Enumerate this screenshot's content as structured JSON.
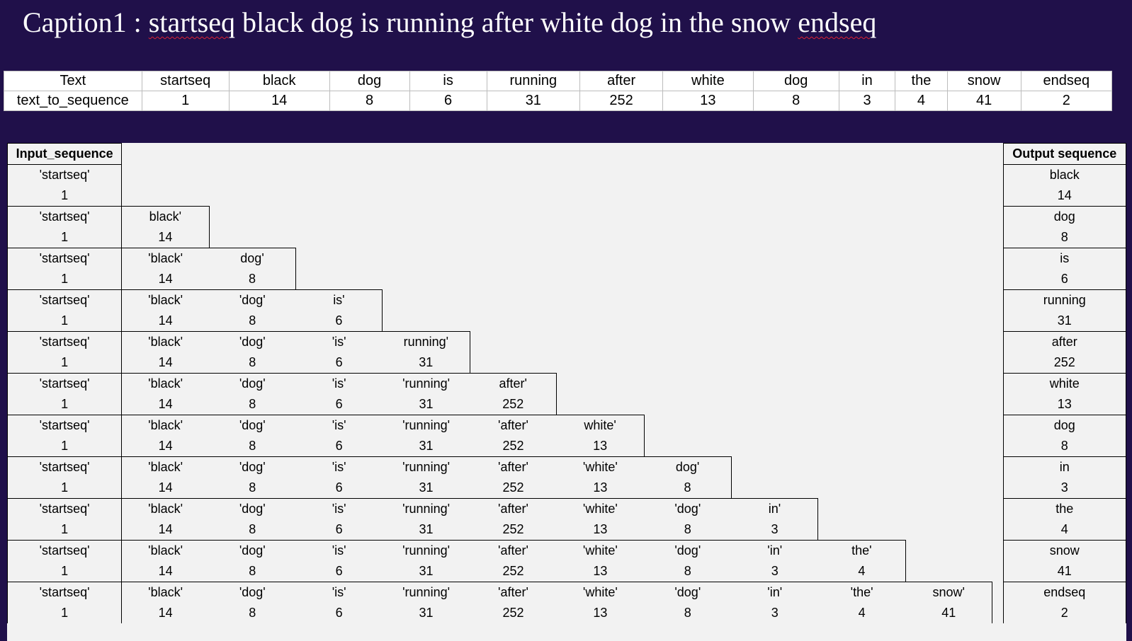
{
  "caption": {
    "prefix": "Caption1 : ",
    "start_token": "startseq",
    "middle": " black dog is running after white dog in the snow ",
    "end_token": "endseq"
  },
  "token_table": {
    "row_labels": [
      "Text",
      "text_to_sequence"
    ],
    "tokens": [
      "startseq",
      "black",
      "dog",
      "is",
      "running",
      "after",
      "white",
      "dog",
      "in",
      "the",
      "snow",
      "endseq"
    ],
    "ids": [
      "1",
      "14",
      "8",
      "6",
      "31",
      "252",
      "13",
      "8",
      "3",
      "4",
      "41",
      "2"
    ]
  },
  "sequences": {
    "input_header": "Input_sequence",
    "output_header": "Output sequence",
    "rows": [
      {
        "words": [
          "'startseq'"
        ],
        "ids": [
          "1"
        ],
        "out_word": "black",
        "out_id": "14"
      },
      {
        "words": [
          "'startseq'",
          "black'"
        ],
        "ids": [
          "1",
          "14"
        ],
        "out_word": "dog",
        "out_id": "8"
      },
      {
        "words": [
          "'startseq'",
          "'black'",
          "dog'"
        ],
        "ids": [
          "1",
          "14",
          "8"
        ],
        "out_word": "is",
        "out_id": "6"
      },
      {
        "words": [
          "'startseq'",
          "'black'",
          "'dog'",
          "is'"
        ],
        "ids": [
          "1",
          "14",
          "8",
          "6"
        ],
        "out_word": "running",
        "out_id": "31"
      },
      {
        "words": [
          "'startseq'",
          "'black'",
          "'dog'",
          "'is'",
          "running'"
        ],
        "ids": [
          "1",
          "14",
          "8",
          "6",
          "31"
        ],
        "out_word": "after",
        "out_id": "252"
      },
      {
        "words": [
          "'startseq'",
          "'black'",
          "'dog'",
          "'is'",
          "'running'",
          "after'"
        ],
        "ids": [
          "1",
          "14",
          "8",
          "6",
          "31",
          "252"
        ],
        "out_word": "white",
        "out_id": "13"
      },
      {
        "words": [
          "'startseq'",
          "'black'",
          "'dog'",
          "'is'",
          "'running'",
          "'after'",
          "white'"
        ],
        "ids": [
          "1",
          "14",
          "8",
          "6",
          "31",
          "252",
          "13"
        ],
        "out_word": "dog",
        "out_id": "8"
      },
      {
        "words": [
          "'startseq'",
          "'black'",
          "'dog'",
          "'is'",
          "'running'",
          "'after'",
          "'white'",
          "dog'"
        ],
        "ids": [
          "1",
          "14",
          "8",
          "6",
          "31",
          "252",
          "13",
          "8"
        ],
        "out_word": "in",
        "out_id": "3"
      },
      {
        "words": [
          "'startseq'",
          "'black'",
          "'dog'",
          "'is'",
          "'running'",
          "'after'",
          "'white'",
          "'dog'",
          "in'"
        ],
        "ids": [
          "1",
          "14",
          "8",
          "6",
          "31",
          "252",
          "13",
          "8",
          "3"
        ],
        "out_word": "the",
        "out_id": "4"
      },
      {
        "words": [
          "'startseq'",
          "'black'",
          "'dog'",
          "'is'",
          "'running'",
          "'after'",
          "'white'",
          "'dog'",
          "'in'",
          "the'"
        ],
        "ids": [
          "1",
          "14",
          "8",
          "6",
          "31",
          "252",
          "13",
          "8",
          "3",
          "4"
        ],
        "out_word": "snow",
        "out_id": "41"
      },
      {
        "words": [
          "'startseq'",
          "'black'",
          "'dog'",
          "'is'",
          "'running'",
          "'after'",
          "'white'",
          "'dog'",
          "'in'",
          "'the'",
          "snow'"
        ],
        "ids": [
          "1",
          "14",
          "8",
          "6",
          "31",
          "252",
          "13",
          "8",
          "3",
          "4",
          "41"
        ],
        "out_word": "endseq",
        "out_id": "2"
      }
    ]
  }
}
